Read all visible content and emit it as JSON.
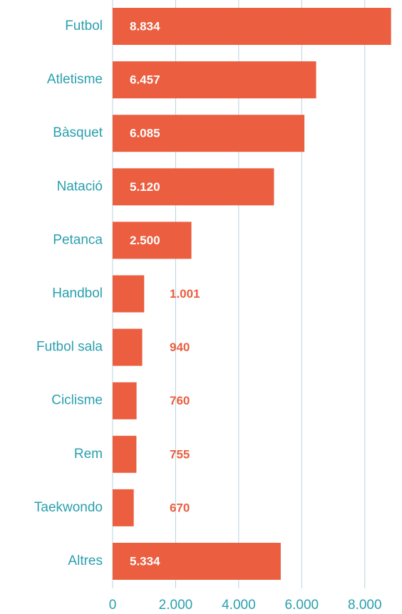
{
  "chart_data": {
    "type": "bar",
    "orientation": "horizontal",
    "categories": [
      "Futbol",
      "Atletisme",
      "Bàsquet",
      "Natació",
      "Petanca",
      "Handbol",
      "Futbol sala",
      "Ciclisme",
      "Rem",
      "Taekwondo",
      "Altres"
    ],
    "values": [
      8834,
      6457,
      6085,
      5120,
      2500,
      1001,
      940,
      760,
      755,
      670,
      5334
    ],
    "value_labels": [
      "8.834",
      "6.457",
      "6.085",
      "5.120",
      "2.500",
      "1.001",
      "940",
      "760",
      "755",
      "670",
      "5.334"
    ],
    "color": "#eb5e40",
    "xlim": [
      0,
      9000
    ],
    "xticks": [
      0,
      {
        "value": 2000,
        "label": "2.000"
      },
      {
        "value": 4000,
        "label": "4.000"
      },
      {
        "value": 6000,
        "label": "6.000"
      },
      {
        "value": 8000,
        "label": "8.000"
      }
    ],
    "grid": true
  }
}
